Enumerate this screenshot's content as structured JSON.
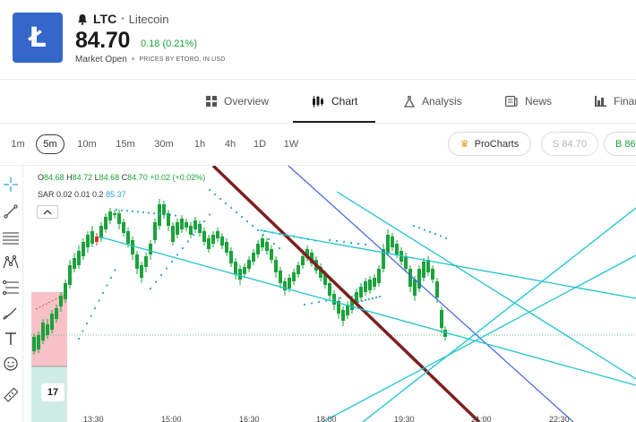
{
  "asset": {
    "symbol": "LTC",
    "name": "Litecoin",
    "separator": "•",
    "logo_letter": "Ł",
    "price": "84.70",
    "change": "0.18 (0.21%)",
    "market_status": "Market Open",
    "price_source": "PRICES BY ETORO, IN USD",
    "brand_color": "#3467c9"
  },
  "tabs": [
    {
      "label": "Overview",
      "icon": "grid-icon"
    },
    {
      "label": "Chart",
      "icon": "candles-icon",
      "active": true
    },
    {
      "label": "Analysis",
      "icon": "flask-icon"
    },
    {
      "label": "News",
      "icon": "newspaper-icon"
    },
    {
      "label": "Finar",
      "icon": "bar-chart-icon"
    }
  ],
  "timeframes": [
    "1m",
    "5m",
    "10m",
    "15m",
    "30m",
    "1h",
    "4h",
    "1D",
    "1W"
  ],
  "selected_timeframe": "5m",
  "prochart_label": "ProCharts",
  "sell_label": "S 84.70",
  "buy_label": "B 86",
  "chart": {
    "legend": {
      "o_label": "O",
      "o": "84.68",
      "h_label": "H",
      "h": "84.72",
      "l_label": "L",
      "l": "84.68",
      "c_label": "C",
      "c": "84.70 +0.02 (+0.02%)"
    },
    "sar": {
      "label": "SAR 0.02 0.01 0.2",
      "value": "85.37"
    },
    "tv_badge": "17",
    "x_labels": [
      "13:30",
      "15:00",
      "16:30",
      "18:00",
      "19:30",
      "21:00",
      "22:30"
    ],
    "up_color": "#1aa33a",
    "down_color": "#e0312f"
  }
}
